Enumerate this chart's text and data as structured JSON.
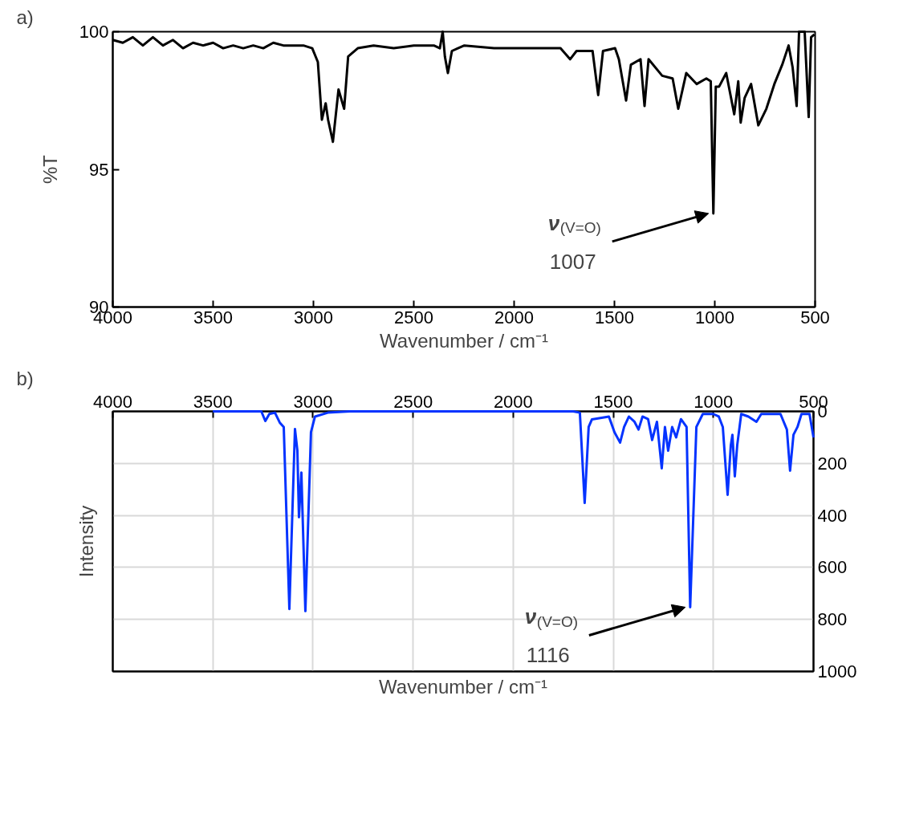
{
  "chart_data": [
    {
      "type": "line",
      "title": "a)",
      "xlabel": "Wavenumber / cm⁻¹",
      "ylabel": "%T",
      "xlim": [
        4000,
        500
      ],
      "xticks": [
        4000,
        3500,
        3000,
        2500,
        2000,
        1500,
        1000,
        500
      ],
      "ylim": [
        90,
        100
      ],
      "yticks": [
        90,
        95,
        100
      ],
      "grid": false,
      "line_style": "solid",
      "annotations": [
        {
          "text": "ν$_{(V=O)}$ 1007",
          "x": 1007,
          "y": 93.4
        }
      ],
      "series": [
        {
          "color": "#000000",
          "x": [
            4000,
            3950,
            3900,
            3850,
            3800,
            3750,
            3700,
            3650,
            3600,
            3550,
            3500,
            3450,
            3400,
            3350,
            3300,
            3250,
            3200,
            3150,
            3100,
            3050,
            3006,
            2978,
            2958,
            2939,
            2927,
            2903,
            2875,
            2847,
            2827,
            2779,
            2700,
            2600,
            2500,
            2400,
            2370,
            2356,
            2345,
            2330,
            2310,
            2280,
            2248,
            2100,
            1997,
            1850,
            1769,
            1721,
            1689,
            1609,
            1581,
            1557,
            1497,
            1478,
            1442,
            1418,
            1370,
            1350,
            1330,
            1262,
            1210,
            1182,
            1142,
            1090,
            1042,
            1020,
            1007,
            995,
            979,
            943,
            903,
            883,
            871,
            851,
            819,
            783,
            743,
            703,
            664,
            632,
            612,
            592,
            580,
            552,
            532,
            520,
            504
          ],
          "values": [
            99.7,
            99.6,
            99.8,
            99.5,
            99.8,
            99.5,
            99.7,
            99.4,
            99.6,
            99.5,
            99.6,
            99.4,
            99.5,
            99.4,
            99.5,
            99.4,
            99.6,
            99.5,
            99.5,
            99.5,
            99.4,
            98.9,
            96.8,
            97.4,
            96.8,
            96.0,
            97.9,
            97.2,
            99.1,
            99.4,
            99.5,
            99.4,
            99.5,
            99.5,
            99.4,
            100,
            99.1,
            98.5,
            99.3,
            99.4,
            99.5,
            99.4,
            99.4,
            99.4,
            99.4,
            99.0,
            99.3,
            99.3,
            97.7,
            99.3,
            99.4,
            99.0,
            97.5,
            98.8,
            99.0,
            97.3,
            99.0,
            98.4,
            98.3,
            97.2,
            98.5,
            98.1,
            98.3,
            98.2,
            93.4,
            98.0,
            98.0,
            98.5,
            97.0,
            98.2,
            96.7,
            97.6,
            98.1,
            96.6,
            97.2,
            98.1,
            98.8,
            99.5,
            98.7,
            97.3,
            100,
            100,
            96.9,
            99.8,
            99.9
          ]
        }
      ]
    },
    {
      "type": "line",
      "title": "b)",
      "xlabel": "Wavenumber / cm⁻¹",
      "ylabel": "Intensity",
      "xlim": [
        4000,
        500
      ],
      "xticks": [
        4000,
        3500,
        3000,
        2500,
        2000,
        1500,
        1000,
        500
      ],
      "ylim": [
        1000,
        0
      ],
      "yticks": [
        0,
        200,
        400,
        600,
        800,
        1000
      ],
      "grid": true,
      "line_style": "solid",
      "annotations": [
        {
          "text": "ν$_{(V=O)}$ 1116",
          "x": 1116,
          "y": 753
        }
      ],
      "series": [
        {
          "color": "#0433ff",
          "x": [
            3500,
            3258,
            3238,
            3218,
            3190,
            3166,
            3146,
            3118,
            3090,
            3078,
            3070,
            3058,
            3038,
            3010,
            2990,
            2926,
            2817,
            1700,
            1667,
            1643,
            1623,
            1607,
            1522,
            1494,
            1466,
            1446,
            1422,
            1394,
            1374,
            1354,
            1326,
            1306,
            1282,
            1258,
            1242,
            1226,
            1206,
            1186,
            1162,
            1134,
            1116,
            1085,
            1053,
            1001,
            973,
            953,
            929,
            913,
            905,
            893,
            881,
            861,
            825,
            785,
            761,
            665,
            633,
            617,
            600,
            580,
            560,
            520,
            500
          ],
          "values": [
            0,
            0,
            37,
            10,
            5,
            43,
            60,
            760,
            68,
            150,
            407,
            235,
            768,
            80,
            20,
            5,
            0,
            0,
            5,
            352,
            60,
            31,
            20,
            80,
            120,
            60,
            20,
            40,
            70,
            20,
            30,
            110,
            40,
            219,
            60,
            151,
            60,
            100,
            30,
            60,
            753,
            60,
            10,
            10,
            20,
            60,
            321,
            130,
            90,
            250,
            130,
            10,
            20,
            40,
            10,
            10,
            70,
            228,
            90,
            60,
            10,
            10,
            100
          ]
        }
      ]
    }
  ]
}
